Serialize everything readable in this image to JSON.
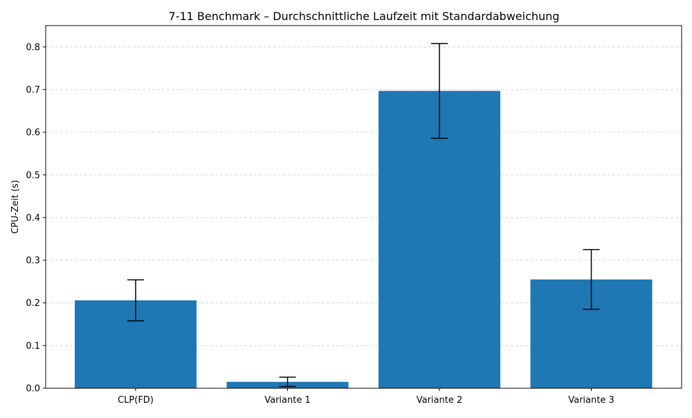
{
  "chart_data": {
    "type": "bar",
    "title": "7-11 Benchmark – Durchschnittliche Laufzeit mit Standardabweichung",
    "xlabel": "",
    "ylabel": "CPU-Zeit (s)",
    "categories": [
      "CLP(FD)",
      "Variante 1",
      "Variante 2",
      "Variante 3"
    ],
    "values": [
      0.206,
      0.015,
      0.697,
      0.255
    ],
    "errors": [
      0.048,
      0.011,
      0.111,
      0.07
    ],
    "ylim": [
      0,
      0.85
    ],
    "yticks": [
      0.0,
      0.1,
      0.2,
      0.3,
      0.4,
      0.5,
      0.6,
      0.7,
      0.8
    ],
    "ytick_labels": [
      "0.0",
      "0.1",
      "0.2",
      "0.3",
      "0.4",
      "0.5",
      "0.6",
      "0.7",
      "0.8"
    ],
    "grid": "y-dashed",
    "bar_color": "#1f77b4",
    "error_color": "#000000"
  }
}
